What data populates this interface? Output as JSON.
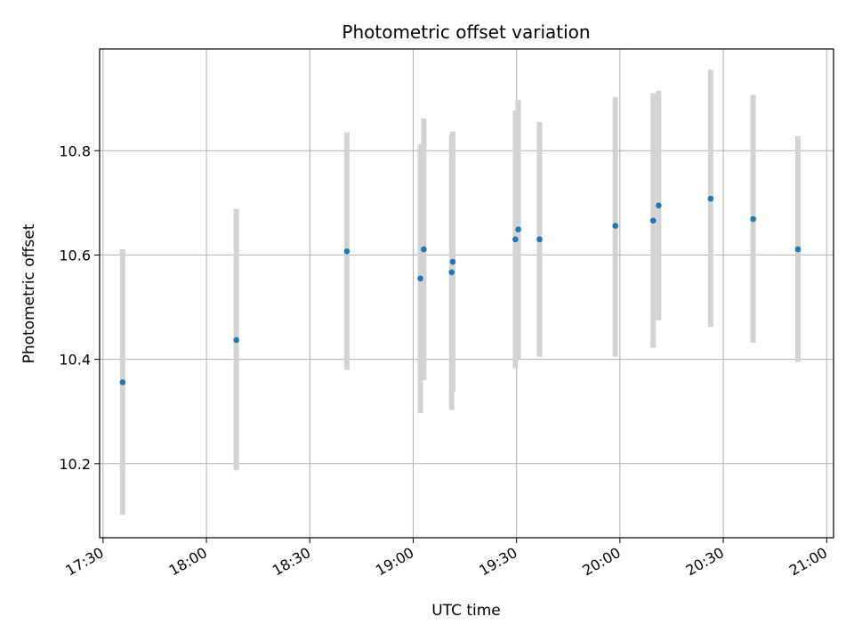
{
  "chart_data": {
    "type": "scatter",
    "title": "Photometric offset variation",
    "xlabel": "UTC time",
    "ylabel": "Photometric offset",
    "x_axis": "time",
    "xlim": [
      "17:29",
      "21:02"
    ],
    "ylim": [
      10.058,
      10.995
    ],
    "xticks": [
      "17:30",
      "18:00",
      "18:30",
      "19:00",
      "19:30",
      "20:00",
      "20:30",
      "21:00"
    ],
    "yticks": [
      10.2,
      10.4,
      10.6,
      10.8
    ],
    "ytick_labels": [
      "10.2",
      "10.4",
      "10.6",
      "10.8"
    ],
    "grid": true,
    "legend": "none",
    "marker_color": "#1f77b4",
    "errorbar_color": "#d3d3d3",
    "points": [
      {
        "x": "17:35:40",
        "y": 10.356,
        "err_low": 10.102,
        "err_high": 10.611
      },
      {
        "x": "18:08:40",
        "y": 10.437,
        "err_low": 10.187,
        "err_high": 10.688
      },
      {
        "x": "18:40:45",
        "y": 10.607,
        "err_low": 10.38,
        "err_high": 10.835
      },
      {
        "x": "19:02:05",
        "y": 10.555,
        "err_low": 10.297,
        "err_high": 10.812
      },
      {
        "x": "19:03:05",
        "y": 10.611,
        "err_low": 10.36,
        "err_high": 10.862
      },
      {
        "x": "19:11:10",
        "y": 10.567,
        "err_low": 10.303,
        "err_high": 10.831
      },
      {
        "x": "19:11:30",
        "y": 10.587,
        "err_low": 10.338,
        "err_high": 10.837
      },
      {
        "x": "19:29:40",
        "y": 10.63,
        "err_low": 10.383,
        "err_high": 10.877
      },
      {
        "x": "19:30:30",
        "y": 10.649,
        "err_low": 10.4,
        "err_high": 10.897
      },
      {
        "x": "19:36:40",
        "y": 10.63,
        "err_low": 10.405,
        "err_high": 10.855
      },
      {
        "x": "19:58:40",
        "y": 10.656,
        "err_low": 10.405,
        "err_high": 10.903
      },
      {
        "x": "20:09:40",
        "y": 10.666,
        "err_low": 10.422,
        "err_high": 10.91
      },
      {
        "x": "20:11:15",
        "y": 10.695,
        "err_low": 10.475,
        "err_high": 10.915
      },
      {
        "x": "20:26:20",
        "y": 10.708,
        "err_low": 10.462,
        "err_high": 10.955
      },
      {
        "x": "20:38:40",
        "y": 10.669,
        "err_low": 10.432,
        "err_high": 10.907
      },
      {
        "x": "20:51:40",
        "y": 10.611,
        "err_low": 10.395,
        "err_high": 10.828
      }
    ]
  }
}
